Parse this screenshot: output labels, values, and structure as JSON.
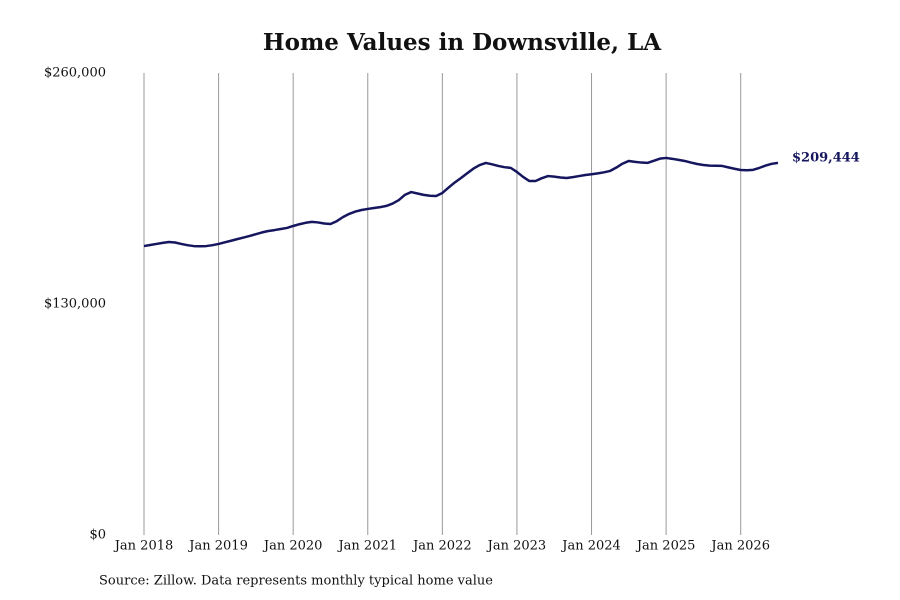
{
  "chart_data": {
    "type": "line",
    "title": "Home Values in Downsville, LA",
    "source": "Source: Zillow. Data represents monthly typical home value",
    "x": [
      "2018-01",
      "2018-02",
      "2018-03",
      "2018-04",
      "2018-05",
      "2018-06",
      "2018-07",
      "2018-08",
      "2018-09",
      "2018-10",
      "2018-11",
      "2018-12",
      "2019-01",
      "2019-02",
      "2019-03",
      "2019-04",
      "2019-05",
      "2019-06",
      "2019-07",
      "2019-08",
      "2019-09",
      "2019-10",
      "2019-11",
      "2019-12",
      "2020-01",
      "2020-02",
      "2020-03",
      "2020-04",
      "2020-05",
      "2020-06",
      "2020-07",
      "2020-08",
      "2020-09",
      "2020-10",
      "2020-11",
      "2020-12",
      "2021-01",
      "2021-02",
      "2021-03",
      "2021-04",
      "2021-05",
      "2021-06",
      "2021-07",
      "2021-08",
      "2021-09",
      "2021-10",
      "2021-11",
      "2021-12",
      "2022-01",
      "2022-02",
      "2022-03",
      "2022-04",
      "2022-05",
      "2022-06",
      "2022-07",
      "2022-08",
      "2022-09",
      "2022-10",
      "2022-11",
      "2022-12",
      "2023-01",
      "2023-02",
      "2023-03",
      "2023-04",
      "2023-05",
      "2023-06",
      "2023-07",
      "2023-08",
      "2023-09",
      "2023-10",
      "2023-11",
      "2023-12",
      "2024-01",
      "2024-02",
      "2024-03",
      "2024-04",
      "2024-05",
      "2024-06",
      "2024-07",
      "2024-08",
      "2024-09",
      "2024-10",
      "2024-11",
      "2024-12",
      "2025-01",
      "2025-02",
      "2025-03",
      "2025-04",
      "2025-05",
      "2025-06",
      "2025-07",
      "2025-08",
      "2025-09",
      "2025-10",
      "2025-11",
      "2025-12",
      "2026-01",
      "2026-02",
      "2026-03",
      "2026-04",
      "2026-05",
      "2026-06",
      "2026-07"
    ],
    "series": [
      {
        "name": "Home value",
        "color": "#16165f",
        "values": [
          162600,
          163200,
          163800,
          164400,
          164900,
          164600,
          163800,
          163100,
          162600,
          162500,
          162600,
          163100,
          163800,
          164700,
          165600,
          166500,
          167400,
          168300,
          169300,
          170300,
          171100,
          171600,
          172200,
          172800,
          173900,
          174900,
          175700,
          176200,
          175900,
          175300,
          175000,
          176600,
          178900,
          180700,
          182000,
          182900,
          183500,
          184000,
          184500,
          185200,
          186500,
          188500,
          191500,
          193000,
          192200,
          191400,
          190900,
          190800,
          192500,
          195500,
          198400,
          200900,
          203600,
          206200,
          208200,
          209400,
          208600,
          207700,
          207000,
          206600,
          204300,
          201500,
          199200,
          199200,
          200800,
          202000,
          201700,
          201200,
          200900,
          201400,
          202000,
          202600,
          203000,
          203500,
          204100,
          204900,
          206800,
          209000,
          210500,
          210000,
          209600,
          209400,
          210600,
          211800,
          212200,
          211700,
          211100,
          210500,
          209600,
          208800,
          208200,
          207900,
          207800,
          207700,
          206900,
          206100,
          205400,
          205300,
          205500,
          206600,
          207900,
          208900,
          209444
        ]
      }
    ],
    "end_label": "$209,444",
    "xlim": [
      "2018-01",
      "2026-07"
    ],
    "xticks": [
      {
        "value": "2018-01",
        "label": "Jan 2018"
      },
      {
        "value": "2019-01",
        "label": "Jan 2019"
      },
      {
        "value": "2020-01",
        "label": "Jan 2020"
      },
      {
        "value": "2021-01",
        "label": "Jan 2021"
      },
      {
        "value": "2022-01",
        "label": "Jan 2022"
      },
      {
        "value": "2023-01",
        "label": "Jan 2023"
      },
      {
        "value": "2024-01",
        "label": "Jan 2024"
      },
      {
        "value": "2025-01",
        "label": "Jan 2025"
      },
      {
        "value": "2026-01",
        "label": "Jan 2026"
      }
    ],
    "ylim": [
      0,
      260000
    ],
    "yticks": [
      {
        "value": 0,
        "label": "$0"
      },
      {
        "value": 130000,
        "label": "$130,000"
      },
      {
        "value": 260000,
        "label": "$260,000"
      }
    ],
    "grid": "x"
  }
}
